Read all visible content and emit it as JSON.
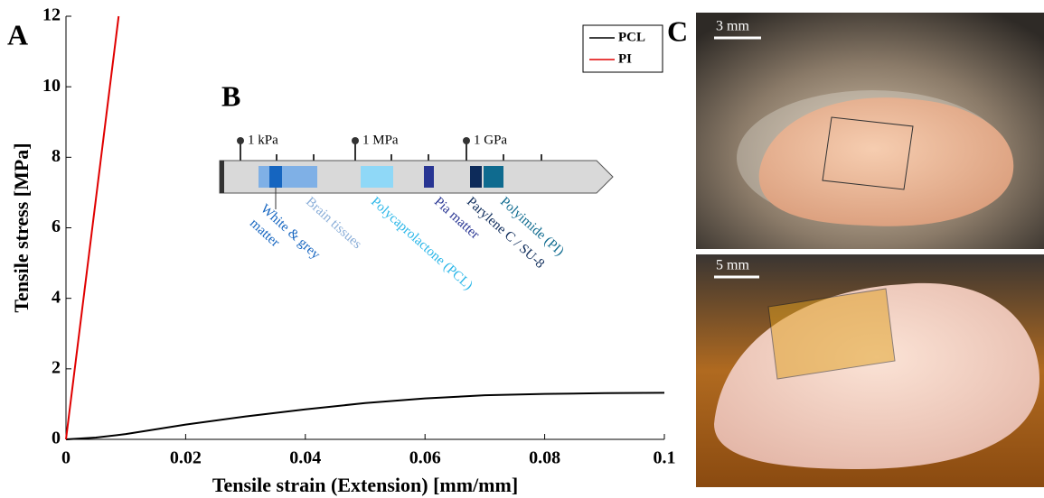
{
  "chart_data": {
    "type": "line",
    "panel_label": "A",
    "x_label": "Tensile strain (Extension) [mm/mm]",
    "y_label": "Tensile stress [MPa]",
    "xlim": [
      0,
      0.1
    ],
    "ylim": [
      0,
      12
    ],
    "xticks": [
      0,
      0.02,
      0.04,
      0.06,
      0.08,
      0.1
    ],
    "yticks": [
      0,
      2,
      4,
      6,
      8,
      10,
      12
    ],
    "legend": "upper right",
    "series": [
      {
        "name": "PCL",
        "color": "#000000",
        "x": [
          0,
          0.005,
          0.01,
          0.02,
          0.03,
          0.04,
          0.05,
          0.06,
          0.07,
          0.08,
          0.09,
          0.1
        ],
        "values": [
          0,
          0.05,
          0.15,
          0.42,
          0.65,
          0.85,
          1.03,
          1.16,
          1.25,
          1.29,
          1.31,
          1.32
        ]
      },
      {
        "name": "PI",
        "color": "#e00000",
        "x": [
          0,
          0.0088
        ],
        "values": [
          0,
          12
        ]
      }
    ]
  },
  "inset": {
    "panel_label": "B",
    "scale_labels": [
      "1 kPa",
      "1 MPa",
      "1 GPa"
    ],
    "materials": [
      {
        "lines": [
          "Brain tissues"
        ]
      },
      {
        "lines": [
          "White & grey",
          "matter"
        ]
      },
      {
        "lines": [
          "Polycaprolactone (PCL)"
        ]
      },
      {
        "lines": [
          "Pia matter"
        ]
      },
      {
        "lines": [
          "Parylene C / SU-8"
        ]
      },
      {
        "lines": [
          "Polyimide (PI)"
        ]
      }
    ]
  },
  "photos": {
    "panel_label": "C",
    "scale_bars": [
      "3 mm",
      "5 mm"
    ]
  }
}
